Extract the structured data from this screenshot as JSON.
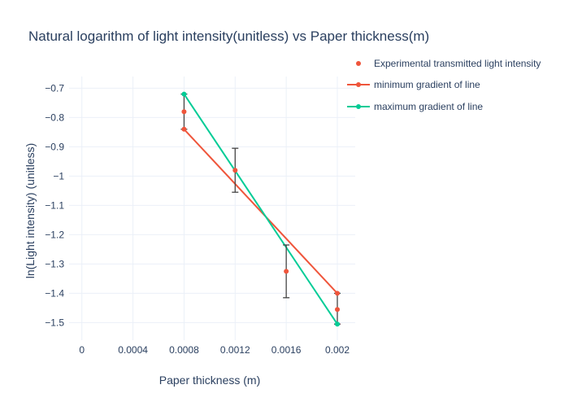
{
  "chart_data": {
    "type": "scatter",
    "title": "Natural logarithm of light intensity(unitless) vs Paper thickness(m)",
    "xlabel": "Paper thickness (m)",
    "ylabel": "ln(Light intensity) (unitless)",
    "xlim": [
      -0.0001,
      0.00214
    ],
    "ylim": [
      -1.56,
      -0.66
    ],
    "xticks": [
      0,
      0.0004,
      0.0008,
      0.0012,
      0.0016,
      0.002
    ],
    "xtick_labels": [
      "0",
      "0.0004",
      "0.0008",
      "0.0012",
      "0.0016",
      "0.002"
    ],
    "yticks": [
      -0.7,
      -0.8,
      -0.9,
      -1.0,
      -1.1,
      -1.2,
      -1.3,
      -1.4,
      -1.5
    ],
    "ytick_labels": [
      "−0.7",
      "−0.8",
      "−0.9",
      "−1",
      "−1.1",
      "−1.2",
      "−1.3",
      "−1.4",
      "−1.5"
    ],
    "grid": true,
    "legend_position": "top-right",
    "series": [
      {
        "name": "Experimental transmitted light intensity",
        "mode": "markers",
        "color": "#EF553B",
        "x": [
          0.0008,
          0.0012,
          0.0016,
          0.002
        ],
        "y": [
          -0.78,
          -0.98,
          -1.325,
          -1.455
        ],
        "error_y": [
          [
            -0.84,
            -0.72
          ],
          [
            -1.055,
            -0.905
          ],
          [
            -1.415,
            -1.235
          ],
          [
            -1.505,
            -1.4
          ]
        ]
      },
      {
        "name": "minimum gradient of line",
        "mode": "lines+markers",
        "color": "#EF553B",
        "x": [
          0.0008,
          0.002
        ],
        "y": [
          -0.84,
          -1.4
        ]
      },
      {
        "name": "maximum gradient of line",
        "mode": "lines+markers",
        "color": "#00CC96",
        "x": [
          0.0008,
          0.002
        ],
        "y": [
          -0.72,
          -1.505
        ]
      }
    ]
  }
}
